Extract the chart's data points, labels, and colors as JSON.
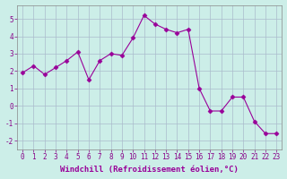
{
  "x": [
    0,
    1,
    2,
    3,
    4,
    5,
    6,
    7,
    8,
    9,
    10,
    11,
    12,
    13,
    14,
    15,
    16,
    17,
    18,
    19,
    20,
    21,
    22,
    23
  ],
  "y": [
    1.9,
    2.3,
    1.8,
    2.2,
    2.6,
    3.1,
    1.5,
    2.6,
    3.0,
    2.9,
    3.9,
    5.2,
    4.7,
    4.4,
    4.2,
    4.4,
    1.0,
    -0.3,
    -0.3,
    0.5,
    0.5,
    -0.9,
    -1.6,
    -1.6
  ],
  "xlabel": "Windchill (Refroidissement éolien,°C)",
  "xlim": [
    -0.5,
    23.5
  ],
  "ylim": [
    -2.5,
    5.8
  ],
  "yticks": [
    -2,
    -1,
    0,
    1,
    2,
    3,
    4,
    5
  ],
  "xticks": [
    0,
    1,
    2,
    3,
    4,
    5,
    6,
    7,
    8,
    9,
    10,
    11,
    12,
    13,
    14,
    15,
    16,
    17,
    18,
    19,
    20,
    21,
    22,
    23
  ],
  "line_color": "#990099",
  "marker": "D",
  "marker_size": 2.5,
  "bg_color": "#cceee8",
  "grid_color": "#aabbcc",
  "tick_label_fontsize": 5.5,
  "xlabel_fontsize": 6.5
}
